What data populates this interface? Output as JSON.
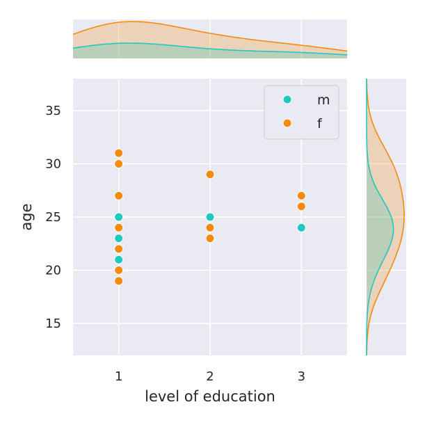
{
  "chart_data": {
    "type": "scatter",
    "xlabel": "level of education",
    "ylabel": "age",
    "xlim": [
      0.5,
      3.5
    ],
    "ylim": [
      12,
      38
    ],
    "xticks": [
      1,
      2,
      3
    ],
    "yticks": [
      15,
      20,
      25,
      30,
      35
    ],
    "grid": true,
    "legend_position": "top-right",
    "series": [
      {
        "name": "m",
        "color": "#20c8c0",
        "points": [
          {
            "x": 1,
            "y": 25
          },
          {
            "x": 1,
            "y": 23
          },
          {
            "x": 1,
            "y": 21
          },
          {
            "x": 2,
            "y": 25
          },
          {
            "x": 3,
            "y": 24
          }
        ]
      },
      {
        "name": "f",
        "color": "#f58b0c",
        "points": [
          {
            "x": 1,
            "y": 31
          },
          {
            "x": 1,
            "y": 30
          },
          {
            "x": 1,
            "y": 27
          },
          {
            "x": 1,
            "y": 24
          },
          {
            "x": 1,
            "y": 22
          },
          {
            "x": 1,
            "y": 20
          },
          {
            "x": 1,
            "y": 19
          },
          {
            "x": 2,
            "y": 29
          },
          {
            "x": 2,
            "y": 24
          },
          {
            "x": 2,
            "y": 23
          },
          {
            "x": 3,
            "y": 27
          },
          {
            "x": 3,
            "y": 26
          }
        ]
      }
    ],
    "marginals": {
      "top": "kde of level of education by series",
      "right": "kde of age by series"
    }
  }
}
